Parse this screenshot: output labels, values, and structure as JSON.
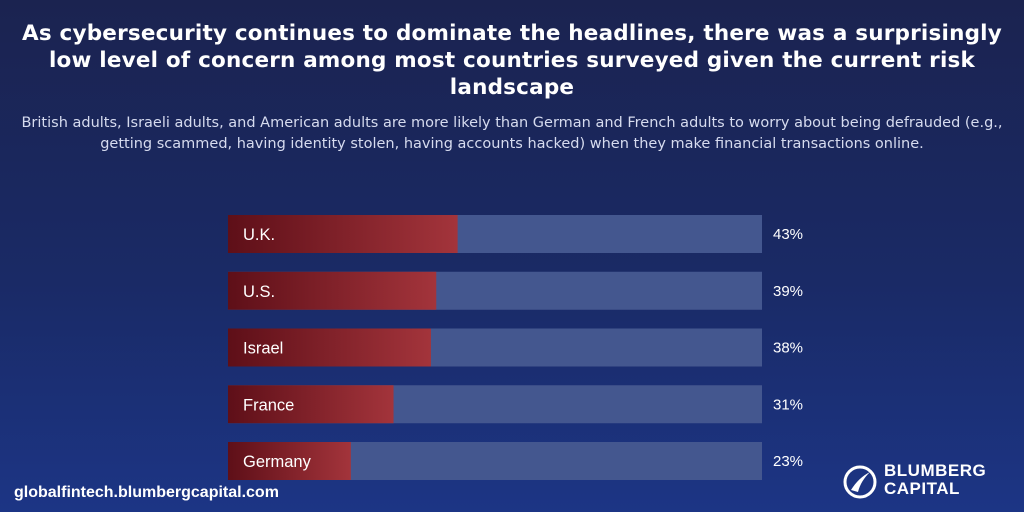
{
  "title": "As cybersecurity continues to dominate the headlines, there was a surprisingly low level of concern among most countries surveyed given the current risk landscape",
  "subtitle": "British adults, Israeli adults, and American adults are more likely than German and French adults to worry about being defrauded (e.g., getting scammed, having identity stolen, having accounts hacked) when they make financial transactions online.",
  "footer": {
    "url": "globalfintech.blumbergcapital.com"
  },
  "logo": {
    "line1": "BLUMBERG",
    "line2": "CAPITAL",
    "icon": "blumberg-logo-icon"
  },
  "colors": {
    "bar_fill_start": "#5e0f18",
    "bar_fill_end": "#a3343b",
    "bar_track": "#44578f"
  },
  "chart_data": {
    "type": "bar",
    "orientation": "horizontal",
    "categories": [
      "U.K.",
      "U.S.",
      "Israel",
      "France",
      "Germany"
    ],
    "values": [
      43,
      39,
      38,
      31,
      23
    ],
    "value_labels": [
      "43%",
      "39%",
      "38%",
      "31%",
      "23%"
    ],
    "xlim": [
      0,
      100
    ],
    "title": "",
    "xlabel": "",
    "ylabel": "",
    "grid": false,
    "legend": "none"
  }
}
